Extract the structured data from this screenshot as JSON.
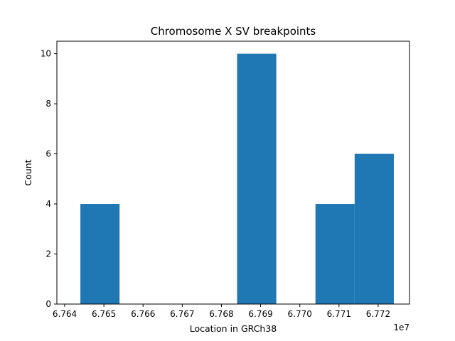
{
  "chart_data": {
    "type": "bar",
    "title": "Chromosome X SV breakpoints",
    "xlabel": "Location in GRCh38",
    "ylabel": "Count",
    "x_offset_label": "1e7",
    "xlim": [
      6.7638,
      6.7728
    ],
    "ylim": [
      0,
      10.5
    ],
    "xticks": [
      6.764,
      6.765,
      6.766,
      6.767,
      6.768,
      6.769,
      6.77,
      6.771,
      6.772
    ],
    "xtick_labels": [
      "6.764",
      "6.765",
      "6.766",
      "6.767",
      "6.768",
      "6.769",
      "6.770",
      "6.771",
      "6.772"
    ],
    "yticks": [
      0,
      2,
      4,
      6,
      8,
      10
    ],
    "ytick_labels": [
      "0",
      "2",
      "4",
      "6",
      "8",
      "10"
    ],
    "bins": [
      {
        "start": 6.7644,
        "end": 6.7654,
        "count": 4
      },
      {
        "start": 6.7654,
        "end": 6.7664,
        "count": 0
      },
      {
        "start": 6.7664,
        "end": 6.7674,
        "count": 0
      },
      {
        "start": 6.7674,
        "end": 6.7684,
        "count": 0
      },
      {
        "start": 6.7684,
        "end": 6.7694,
        "count": 10
      },
      {
        "start": 6.7694,
        "end": 6.7704,
        "count": 0
      },
      {
        "start": 6.7704,
        "end": 6.7714,
        "count": 4
      },
      {
        "start": 6.7714,
        "end": 6.7724,
        "count": 6
      }
    ],
    "bar_color": "#1f77b4",
    "grid": false,
    "legend": "none"
  }
}
